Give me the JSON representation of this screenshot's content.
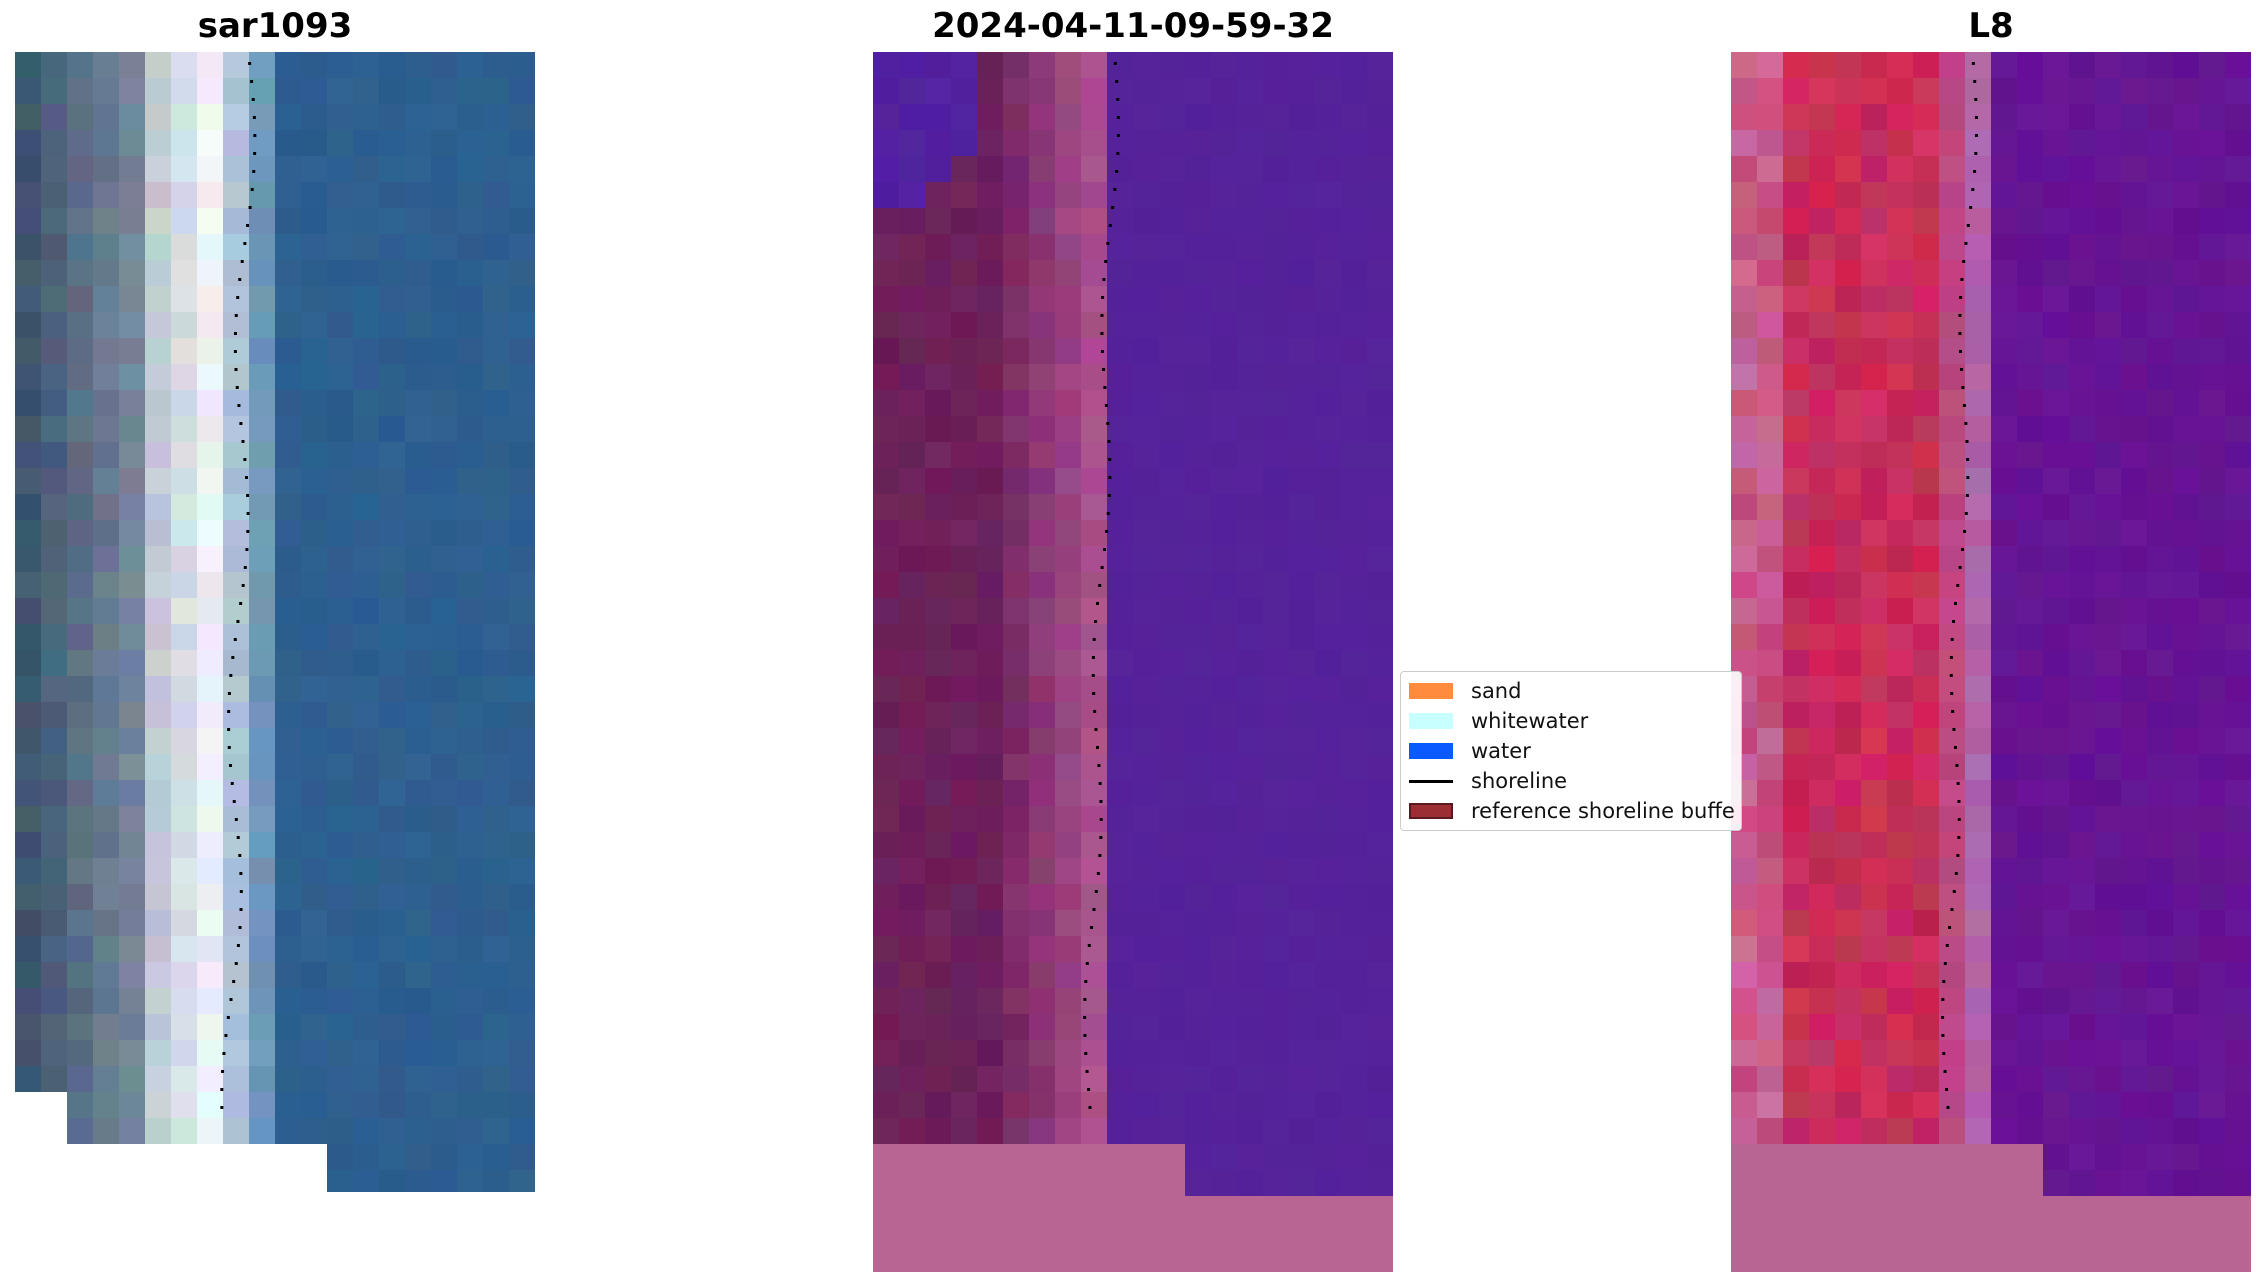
{
  "panels": [
    {
      "title": "sar1093",
      "image": "natural-color-satellite-tile"
    },
    {
      "title": "2024-04-11-09-59-32",
      "image": "classified-false-color-tile"
    },
    {
      "title": "L8",
      "image": "false-color-satellite-tile"
    }
  ],
  "legend": {
    "items": [
      {
        "label": "sand",
        "color": "#ff8c3c",
        "kind": "patch"
      },
      {
        "label": "whitewater",
        "color": "#c8ffff",
        "kind": "patch"
      },
      {
        "label": "water",
        "color": "#0a5aff",
        "kind": "patch"
      },
      {
        "label": "shoreline",
        "color": "#000000",
        "kind": "line"
      },
      {
        "label": "reference shoreline buffe",
        "color": "#9b2d35",
        "kind": "patch"
      }
    ]
  },
  "colors": {
    "water_natural": "#2d5f8f",
    "water_classified": "#55229a",
    "water_false": "#651493",
    "nodata_pink": "#b86593",
    "land_pink": "#c2335f"
  }
}
